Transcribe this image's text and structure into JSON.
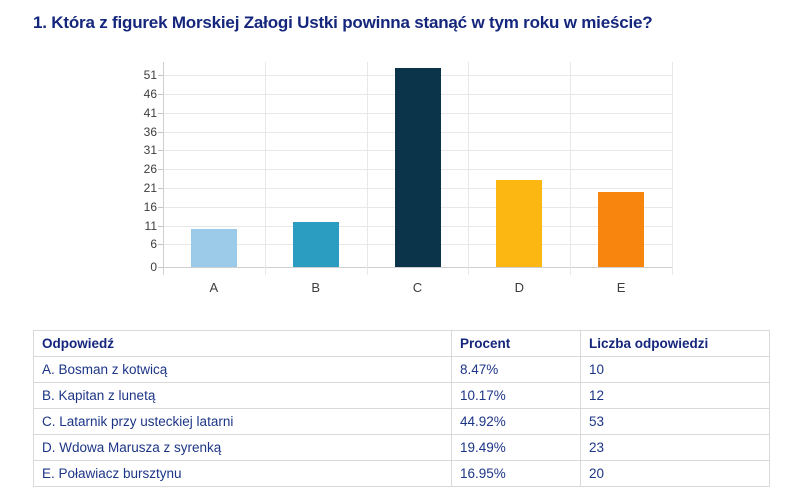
{
  "title": "1. Która z figurek Morskiej Załogi Ustki powinna stanąć w tym roku w mieście?",
  "chart_data": {
    "type": "bar",
    "categories": [
      "A",
      "B",
      "C",
      "D",
      "E"
    ],
    "values": [
      10,
      12,
      53,
      23,
      20
    ],
    "bar_colors": [
      "#9ccbe9",
      "#2b9dc1",
      "#0b3349",
      "#fdb713",
      "#f8860e"
    ],
    "y_ticks": [
      0,
      6,
      11,
      16,
      21,
      26,
      31,
      36,
      41,
      46,
      51
    ],
    "ylim": [
      0,
      54.5
    ],
    "grid": true,
    "legend": "none",
    "title": "",
    "xlabel": "",
    "ylabel": ""
  },
  "table": {
    "headers": [
      "Odpowiedź",
      "Procent",
      "Liczba odpowiedzi"
    ],
    "rows": [
      [
        "A. Bosman z kotwicą",
        "8.47%",
        "10"
      ],
      [
        "B. Kapitan z lunetą",
        "10.17%",
        "12"
      ],
      [
        "C. Latarnik przy usteckiej latarni",
        "44.92%",
        "53"
      ],
      [
        "D. Wdowa Marusza z syrenką",
        "19.49%",
        "23"
      ],
      [
        "E. Poławiacz bursztynu",
        "16.95%",
        "20"
      ]
    ]
  },
  "colors": {
    "accent_navy": "#15267d",
    "table_text": "#1c3587"
  }
}
